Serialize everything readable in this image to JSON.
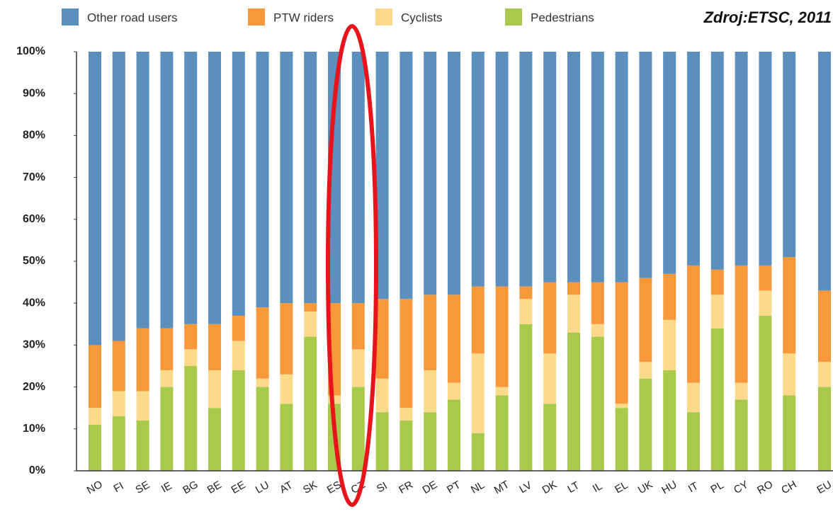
{
  "chart_data": {
    "type": "stacked-bar",
    "annotation": "Zdroj:ETSC, 2011",
    "categories": [
      "NO",
      "FI",
      "SE",
      "IE",
      "BG",
      "BE",
      "EE",
      "LU",
      "AT",
      "SK",
      "ES",
      "CZ",
      "SI",
      "FR",
      "DE",
      "PT",
      "NL",
      "MT",
      "LV",
      "DK",
      "LT",
      "IL",
      "EL",
      "UK",
      "HU",
      "IT",
      "PL",
      "CY",
      "RO",
      "CH",
      "EU"
    ],
    "series": [
      {
        "name": "Other road users",
        "color": "#5b8fbd",
        "values": [
          70,
          69,
          66,
          66,
          65,
          65,
          63,
          61,
          60,
          60,
          60,
          60,
          59,
          59,
          58,
          58,
          56,
          56,
          56,
          55,
          55,
          55,
          55,
          54,
          53,
          51,
          52,
          51,
          51,
          49,
          57
        ]
      },
      {
        "name": "PTW riders",
        "color": "#f7993b",
        "values": [
          15,
          12,
          15,
          10,
          6,
          11,
          6,
          17,
          17,
          2,
          22,
          11,
          19,
          26,
          18,
          21,
          16,
          24,
          3,
          17,
          3,
          10,
          29,
          20,
          11,
          28,
          6,
          28,
          6,
          23,
          17
        ]
      },
      {
        "name": "Cyclists",
        "color": "#fdd98b",
        "values": [
          4,
          6,
          7,
          4,
          4,
          9,
          7,
          2,
          7,
          6,
          2,
          9,
          8,
          3,
          10,
          4,
          19,
          2,
          6,
          12,
          9,
          3,
          1,
          4,
          12,
          7,
          8,
          4,
          6,
          10,
          6
        ]
      },
      {
        "name": "Pedestrians",
        "color": "#a9c94b",
        "values": [
          11,
          13,
          12,
          20,
          25,
          15,
          24,
          20,
          16,
          32,
          16,
          20,
          14,
          12,
          14,
          17,
          9,
          18,
          35,
          16,
          33,
          32,
          15,
          22,
          24,
          14,
          34,
          17,
          37,
          18,
          20
        ]
      }
    ],
    "ylim": [
      0,
      100
    ],
    "yticks": [
      {
        "value": 0,
        "label": "0%"
      },
      {
        "value": 10,
        "label": "10%"
      },
      {
        "value": 20,
        "label": "20%"
      },
      {
        "value": 30,
        "label": "30%"
      },
      {
        "value": 40,
        "label": "40%"
      },
      {
        "value": 50,
        "label": "50%"
      },
      {
        "value": 60,
        "label": "60%"
      },
      {
        "value": 70,
        "label": "70%"
      },
      {
        "value": 80,
        "label": "80%"
      },
      {
        "value": 90,
        "label": "90%"
      },
      {
        "value": 100,
        "label": "100%"
      }
    ],
    "grid": false
  }
}
